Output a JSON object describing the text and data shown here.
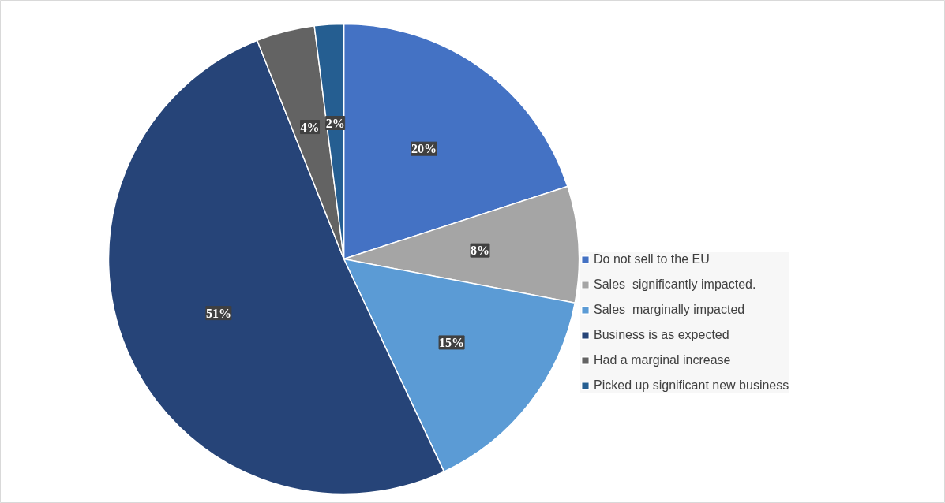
{
  "chart_data": {
    "type": "pie",
    "categories": [
      "Do not sell to the EU",
      "Sales  significantly impacted.",
      "Sales  marginally impacted",
      "Business is as expected",
      "Had a marginal increase",
      "Picked up significant new business"
    ],
    "values": [
      20,
      8,
      15,
      51,
      4,
      2
    ],
    "colors": [
      "#4472c4",
      "#a5a5a5",
      "#5b9bd5",
      "#264478",
      "#636363",
      "#255e91"
    ],
    "value_labels": [
      "20%",
      "8%",
      "15%",
      "51%",
      "4%",
      "2%"
    ],
    "legend": "right"
  }
}
